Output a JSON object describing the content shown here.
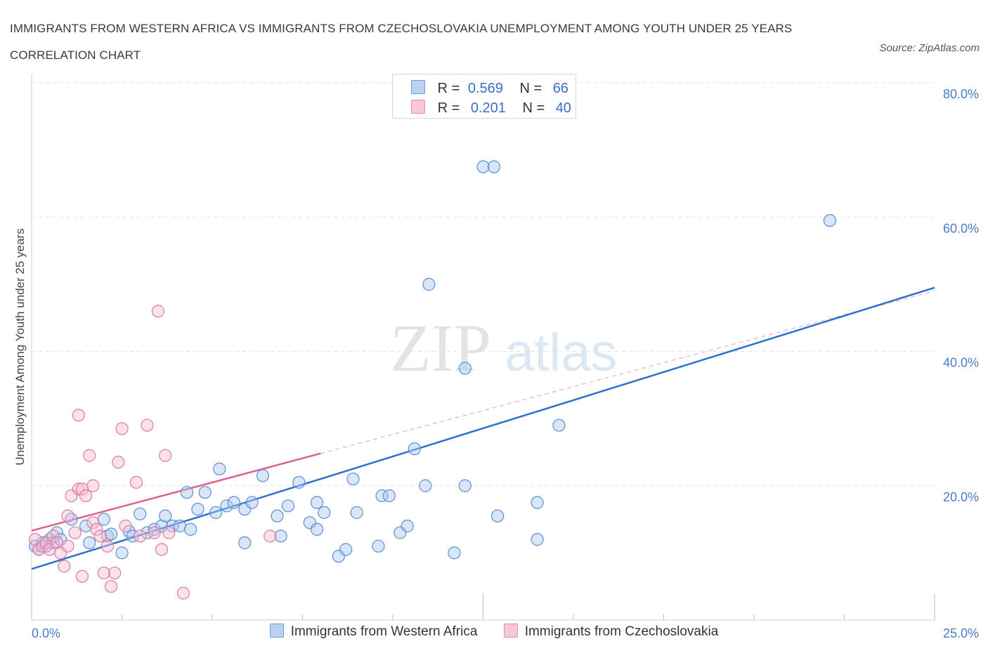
{
  "header": {
    "title": "IMMIGRANTS FROM WESTERN AFRICA VS IMMIGRANTS FROM CZECHOSLOVAKIA UNEMPLOYMENT AMONG YOUTH UNDER 25 YEARS CORRELATION CHART",
    "source": "Source: ZipAtlas.com"
  },
  "watermark": {
    "zip": "ZIP",
    "atlas": "atlas"
  },
  "legend": {
    "rows": [
      {
        "r_label": "R =",
        "r_value": "0.569",
        "n_label": "N =",
        "n_value": "66"
      },
      {
        "r_label": "R =",
        "r_value": "0.201",
        "n_label": "N =",
        "n_value": "40"
      }
    ]
  },
  "colors": {
    "blue_fill": "#aac8f0",
    "blue_stroke": "#5b8fd6",
    "blue_line": "#2f6fd0",
    "pink_fill": "#f6bcd0",
    "pink_stroke": "#e07aa0",
    "pink_line": "#e0608c"
  },
  "chart_data": {
    "type": "scatter",
    "title": "IMMIGRANTS FROM WESTERN AFRICA VS IMMIGRANTS FROM CZECHOSLOVAKIA UNEMPLOYMENT AMONG YOUTH UNDER 25 YEARS CORRELATION CHART",
    "xlabel": "",
    "ylabel": "Unemployment Among Youth under 25 years",
    "xlim": [
      0,
      25
    ],
    "ylim": [
      0,
      80
    ],
    "x_tick_labels": [
      "0.0%",
      "25.0%"
    ],
    "y_ticks": [
      20,
      40,
      60,
      80
    ],
    "y_tick_labels": [
      "20.0%",
      "40.0%",
      "60.0%",
      "80.0%"
    ],
    "grid": true,
    "legend_position": "top-center",
    "series": [
      {
        "name": "Immigrants from Western Africa",
        "color": "#5b8fd6",
        "points": [
          [
            0.1,
            11
          ],
          [
            0.2,
            10.5
          ],
          [
            0.3,
            11.5
          ],
          [
            0.4,
            11
          ],
          [
            0.5,
            12
          ],
          [
            0.6,
            11.5
          ],
          [
            0.7,
            13
          ],
          [
            0.8,
            12
          ],
          [
            1.1,
            15
          ],
          [
            1.5,
            14
          ],
          [
            1.6,
            11.5
          ],
          [
            2.0,
            15
          ],
          [
            2.1,
            12.5
          ],
          [
            2.2,
            12.8
          ],
          [
            2.5,
            10
          ],
          [
            2.7,
            13.2
          ],
          [
            2.8,
            12.5
          ],
          [
            3.0,
            15.8
          ],
          [
            3.2,
            13
          ],
          [
            3.4,
            13.5
          ],
          [
            3.6,
            14
          ],
          [
            3.7,
            15.5
          ],
          [
            3.9,
            14
          ],
          [
            4.1,
            14
          ],
          [
            4.3,
            19
          ],
          [
            4.4,
            13.5
          ],
          [
            4.6,
            16.5
          ],
          [
            4.8,
            19
          ],
          [
            5.1,
            16
          ],
          [
            5.2,
            22.5
          ],
          [
            5.4,
            17
          ],
          [
            5.6,
            17.5
          ],
          [
            5.9,
            16.5
          ],
          [
            5.9,
            11.5
          ],
          [
            6.1,
            17.5
          ],
          [
            6.4,
            21.5
          ],
          [
            6.8,
            15.5
          ],
          [
            6.9,
            12.5
          ],
          [
            7.1,
            17
          ],
          [
            7.4,
            20.5
          ],
          [
            7.7,
            14.5
          ],
          [
            7.9,
            13.5
          ],
          [
            7.9,
            17.5
          ],
          [
            8.1,
            16
          ],
          [
            8.5,
            9.5
          ],
          [
            8.7,
            10.5
          ],
          [
            8.9,
            21
          ],
          [
            9.0,
            16
          ],
          [
            9.6,
            11
          ],
          [
            9.7,
            18.5
          ],
          [
            9.9,
            18.5
          ],
          [
            10.2,
            13
          ],
          [
            10.4,
            14
          ],
          [
            10.6,
            25.5
          ],
          [
            10.9,
            20
          ],
          [
            11.0,
            50
          ],
          [
            11.7,
            10
          ],
          [
            12.0,
            37.5
          ],
          [
            12.0,
            20
          ],
          [
            12.5,
            67.5
          ],
          [
            12.8,
            67.5
          ],
          [
            12.9,
            15.5
          ],
          [
            14.0,
            17.5
          ],
          [
            14.0,
            12
          ],
          [
            14.6,
            29
          ],
          [
            22.1,
            59.5
          ]
        ]
      },
      {
        "name": "Immigrants from Czechoslovakia",
        "color": "#e07aa0",
        "points": [
          [
            0.1,
            12
          ],
          [
            0.2,
            10.5
          ],
          [
            0.3,
            11
          ],
          [
            0.4,
            11.5
          ],
          [
            0.5,
            10.5
          ],
          [
            0.6,
            12.5
          ],
          [
            0.7,
            11.5
          ],
          [
            0.8,
            10
          ],
          [
            0.9,
            8
          ],
          [
            1.0,
            15.5
          ],
          [
            1.0,
            11
          ],
          [
            1.1,
            18.5
          ],
          [
            1.2,
            13
          ],
          [
            1.3,
            19.5
          ],
          [
            1.3,
            30.5
          ],
          [
            1.4,
            6.5
          ],
          [
            1.4,
            19.5
          ],
          [
            1.5,
            18.5
          ],
          [
            1.6,
            24.5
          ],
          [
            1.7,
            20
          ],
          [
            1.7,
            14.5
          ],
          [
            1.8,
            13.5
          ],
          [
            1.9,
            12.5
          ],
          [
            2.0,
            7
          ],
          [
            2.1,
            11
          ],
          [
            2.2,
            5
          ],
          [
            2.3,
            7
          ],
          [
            2.4,
            23.5
          ],
          [
            2.5,
            28.5
          ],
          [
            2.6,
            14
          ],
          [
            2.9,
            20.5
          ],
          [
            3.0,
            12.5
          ],
          [
            3.2,
            29
          ],
          [
            3.4,
            13
          ],
          [
            3.5,
            46
          ],
          [
            3.6,
            10.5
          ],
          [
            3.7,
            24.5
          ],
          [
            3.8,
            13
          ],
          [
            4.2,
            4
          ],
          [
            6.6,
            12.5
          ]
        ]
      }
    ],
    "trend_lines": [
      {
        "series": "Immigrants from Western Africa",
        "x": [
          0,
          25
        ],
        "y": [
          7.6,
          49.5
        ]
      },
      {
        "series": "Immigrants from Czechoslovakia",
        "x": [
          0,
          8
        ],
        "y": [
          13.3,
          24.8
        ]
      },
      {
        "series": "Immigrants from Czechoslovakia (extrapolated)",
        "x": [
          8,
          25
        ],
        "y": [
          24.8,
          49
        ]
      }
    ]
  }
}
